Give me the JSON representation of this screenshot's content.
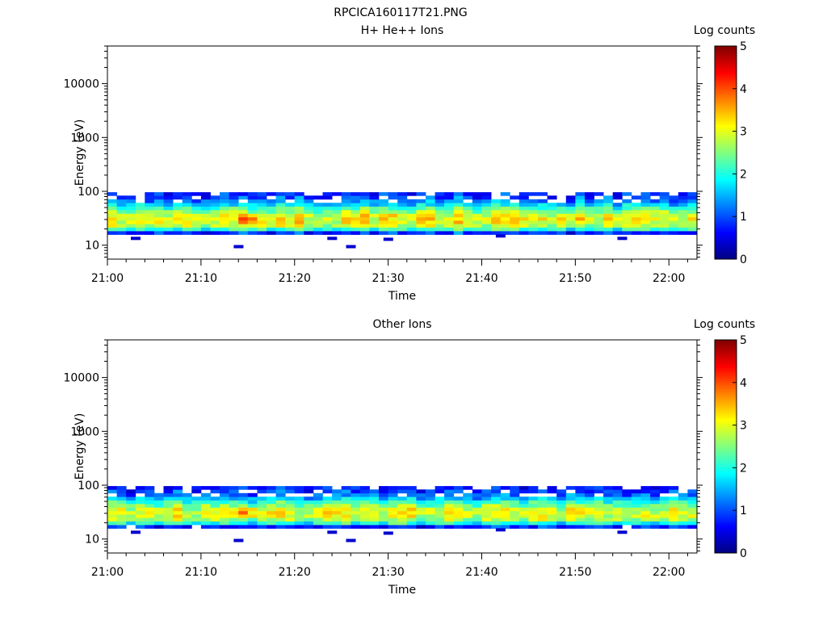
{
  "page_title": "RPCICA160117T21.PNG",
  "chart_data": [
    {
      "type": "heatmap",
      "title": "H+ He++ Ions",
      "xlabel": "Time",
      "ylabel": "Energy (eV)",
      "x_ticks": [
        "21:00",
        "21:10",
        "21:20",
        "21:30",
        "21:40",
        "21:50",
        "22:00"
      ],
      "x_range_minutes": [
        0,
        63
      ],
      "y_scale": "log",
      "y_ticks": [
        "10",
        "100",
        "1000",
        "10000"
      ],
      "y_range": [
        5.5,
        50000
      ],
      "grid": false,
      "colorbar": {
        "label": "Log counts",
        "ticks": [
          "0",
          "1",
          "2",
          "3",
          "4",
          "5"
        ],
        "range": [
          0,
          5
        ]
      },
      "profile": {
        "energy_bins_eV": [
          17,
          20,
          23,
          27,
          31,
          36,
          42,
          49,
          57,
          66,
          77,
          90
        ],
        "typical_log_counts": [
          0.9,
          2.1,
          2.8,
          3.0,
          3.1,
          3.0,
          2.6,
          2.2,
          1.7,
          1.3,
          1.0,
          0.8
        ],
        "peak": {
          "time": "21:14",
          "energy_eV": 31,
          "log_counts": 3.7
        }
      }
    },
    {
      "type": "heatmap",
      "title": "Other Ions",
      "xlabel": "Time",
      "ylabel": "Energy (eV)",
      "x_ticks": [
        "21:00",
        "21:10",
        "21:20",
        "21:30",
        "21:40",
        "21:50",
        "22:00"
      ],
      "x_range_minutes": [
        0,
        63
      ],
      "y_scale": "log",
      "y_ticks": [
        "10",
        "100",
        "1000",
        "10000"
      ],
      "y_range": [
        5.5,
        50000
      ],
      "grid": false,
      "colorbar": {
        "label": "Log counts",
        "ticks": [
          "0",
          "1",
          "2",
          "3",
          "4",
          "5"
        ],
        "range": [
          0,
          5
        ]
      },
      "profile": {
        "energy_bins_eV": [
          17,
          20,
          23,
          27,
          31,
          36,
          42,
          49,
          57,
          66,
          77,
          90
        ],
        "typical_log_counts": [
          0.8,
          2.0,
          2.7,
          2.9,
          3.0,
          2.9,
          2.5,
          2.1,
          1.6,
          1.2,
          0.9,
          0.7
        ],
        "peak": {
          "time": "21:14",
          "energy_eV": 33,
          "log_counts": 3.6
        }
      }
    }
  ]
}
